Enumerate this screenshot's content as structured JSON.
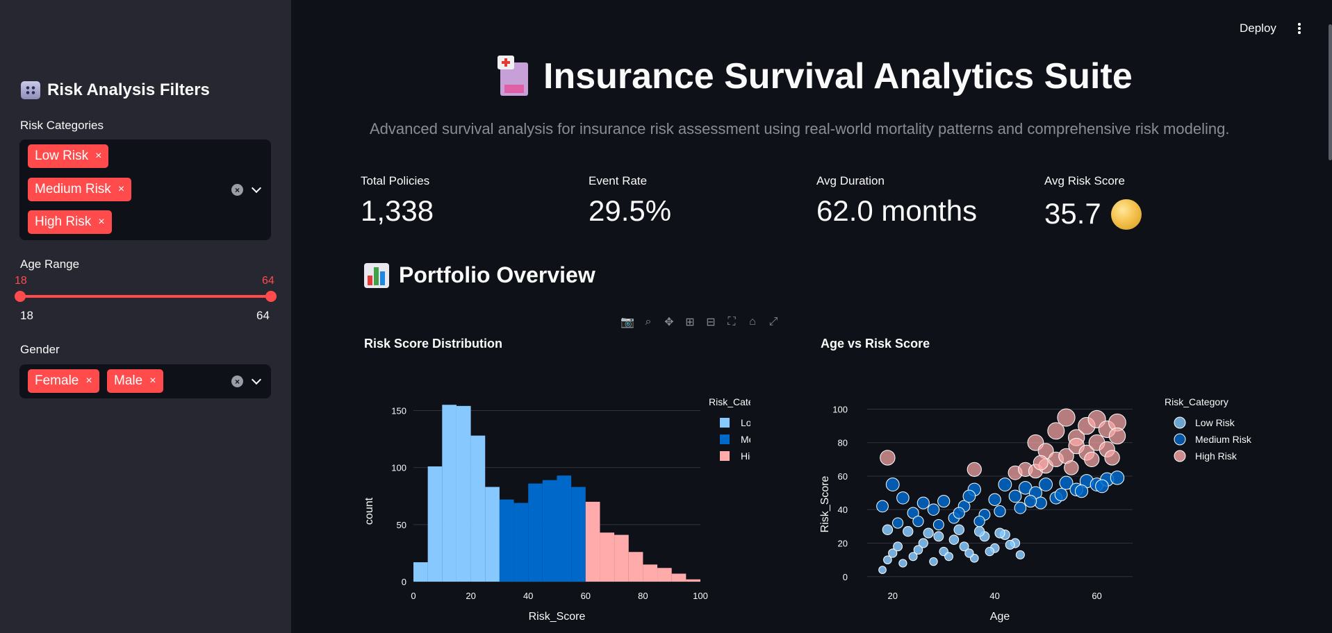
{
  "sidebar": {
    "title": "Risk Analysis Filters",
    "risk_categories": {
      "label": "Risk Categories",
      "tags": [
        "Low Risk",
        "Medium Risk",
        "High Risk"
      ]
    },
    "age_range": {
      "label": "Age Range",
      "low": "18",
      "high": "64",
      "min": "18",
      "max": "64"
    },
    "gender": {
      "label": "Gender",
      "tags": [
        "Female",
        "Male"
      ]
    },
    "tag_remove": "×",
    "clear": "×"
  },
  "header": {
    "deploy_label": "Deploy"
  },
  "main": {
    "title": "Insurance Survival Analytics Suite",
    "subtitle": "Advanced survival analysis for insurance risk assessment using real-world mortality patterns and comprehensive risk modeling.",
    "metrics": [
      {
        "label": "Total Policies",
        "value": "1,338"
      },
      {
        "label": "Event Rate",
        "value": "29.5%"
      },
      {
        "label": "Avg Duration",
        "value": "62.0 months"
      },
      {
        "label": "Avg Risk Score",
        "value": "35.7"
      }
    ],
    "section_title": "Portfolio Overview"
  },
  "colors": {
    "low": "#87c9ff",
    "medium": "#0068c9",
    "high": "#ffabab",
    "accent": "#ff4b4b"
  },
  "chart_data": [
    {
      "type": "bar",
      "title": "Risk Score Distribution",
      "xlabel": "Risk_Score",
      "ylabel": "count",
      "xlim": [
        0,
        100
      ],
      "ylim": [
        0,
        160
      ],
      "xticks": [
        0,
        20,
        40,
        60,
        80,
        100
      ],
      "yticks": [
        0,
        50,
        100,
        150
      ],
      "legend_title": "Risk_Category",
      "legend_position": "top-right",
      "bin_width": 5,
      "series": [
        {
          "name": "Low Risk",
          "bins": [
            0,
            5,
            10,
            15,
            20,
            25
          ],
          "values": [
            17,
            101,
            155,
            154,
            128,
            83
          ]
        },
        {
          "name": "Medium Risk",
          "bins": [
            30,
            35,
            40,
            45,
            50,
            55
          ],
          "values": [
            72,
            69,
            86,
            89,
            93,
            83
          ]
        },
        {
          "name": "High Risk",
          "bins": [
            60,
            65,
            70,
            75,
            80,
            85,
            90,
            95
          ],
          "values": [
            70,
            43,
            41,
            26,
            15,
            12,
            7,
            2
          ]
        }
      ]
    },
    {
      "type": "scatter",
      "title": "Age vs Risk Score",
      "xlabel": "Age",
      "ylabel": "Risk_Score",
      "xlim": [
        15,
        67
      ],
      "ylim": [
        -3,
        106
      ],
      "xticks": [
        20,
        40,
        60
      ],
      "yticks": [
        0,
        20,
        40,
        60,
        80,
        100
      ],
      "legend_title": "Risk_Category",
      "legend_position": "top-right",
      "series": [
        {
          "name": "Low Risk",
          "points": [
            [
              18,
              4
            ],
            [
              19,
              10
            ],
            [
              20,
              14
            ],
            [
              22,
              8
            ],
            [
              24,
              12
            ],
            [
              26,
              20
            ],
            [
              28,
              9
            ],
            [
              30,
              15
            ],
            [
              32,
              22
            ],
            [
              34,
              18
            ],
            [
              36,
              11
            ],
            [
              38,
              24
            ],
            [
              40,
              17
            ],
            [
              42,
              25
            ],
            [
              44,
              20
            ],
            [
              45,
              13
            ],
            [
              19,
              28
            ],
            [
              23,
              27
            ],
            [
              27,
              26
            ],
            [
              33,
              28
            ],
            [
              37,
              27
            ],
            [
              41,
              26
            ],
            [
              21,
              18
            ],
            [
              25,
              16
            ],
            [
              31,
              12
            ],
            [
              35,
              14
            ],
            [
              39,
              15
            ],
            [
              43,
              19
            ],
            [
              29,
              24
            ]
          ]
        },
        {
          "name": "Medium Risk",
          "points": [
            [
              18,
              42
            ],
            [
              20,
              55
            ],
            [
              22,
              47
            ],
            [
              24,
              38
            ],
            [
              26,
              44
            ],
            [
              28,
              40
            ],
            [
              30,
              45
            ],
            [
              32,
              35
            ],
            [
              34,
              42
            ],
            [
              36,
              52
            ],
            [
              38,
              37
            ],
            [
              40,
              46
            ],
            [
              42,
              55
            ],
            [
              44,
              48
            ],
            [
              46,
              53
            ],
            [
              48,
              50
            ],
            [
              50,
              55
            ],
            [
              52,
              47
            ],
            [
              54,
              56
            ],
            [
              56,
              52
            ],
            [
              58,
              57
            ],
            [
              60,
              55
            ],
            [
              62,
              58
            ],
            [
              64,
              59
            ],
            [
              21,
              32
            ],
            [
              25,
              33
            ],
            [
              29,
              31
            ],
            [
              33,
              38
            ],
            [
              37,
              33
            ],
            [
              41,
              39
            ],
            [
              45,
              41
            ],
            [
              49,
              44
            ],
            [
              53,
              49
            ],
            [
              57,
              51
            ],
            [
              61,
              54
            ],
            [
              35,
              48
            ],
            [
              47,
              45
            ]
          ]
        },
        {
          "name": "High Risk",
          "points": [
            [
              19,
              71
            ],
            [
              36,
              64
            ],
            [
              48,
              80
            ],
            [
              50,
              75
            ],
            [
              52,
              87
            ],
            [
              54,
              95
            ],
            [
              56,
              83
            ],
            [
              58,
              90
            ],
            [
              60,
              94
            ],
            [
              62,
              88
            ],
            [
              64,
              92
            ],
            [
              44,
              62
            ],
            [
              46,
              64
            ],
            [
              48,
              63
            ],
            [
              50,
              66
            ],
            [
              52,
              70
            ],
            [
              54,
              72
            ],
            [
              56,
              78
            ],
            [
              58,
              74
            ],
            [
              60,
              80
            ],
            [
              62,
              76
            ],
            [
              64,
              84
            ],
            [
              49,
              68
            ],
            [
              55,
              65
            ],
            [
              59,
              70
            ],
            [
              63,
              71
            ]
          ]
        }
      ]
    }
  ]
}
